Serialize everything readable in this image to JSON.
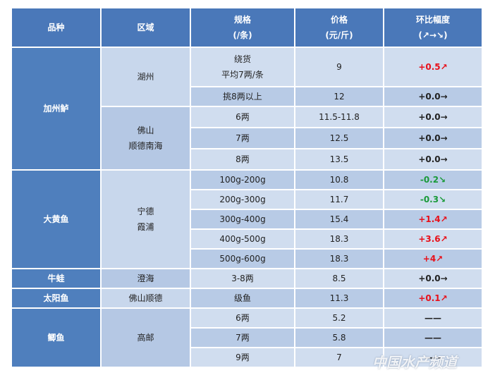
{
  "table": {
    "header": [
      "品种",
      "区域",
      [
        "规格",
        "(/条)"
      ],
      [
        "价格",
        "(元/斤)"
      ],
      [
        "环比幅度",
        "(↗→↘)"
      ]
    ],
    "groups": [
      {
        "variety": "加州鲈",
        "regions": [
          {
            "region": "湖州",
            "items": [
              {
                "spec": [
                  "绕货",
                  "平均7两/条"
                ],
                "price": "9",
                "change": "+0.5↗",
                "color": "#e8101a"
              },
              {
                "spec": "挑8两以上",
                "price": "12",
                "change": "+0.0→",
                "color": "#222222"
              }
            ]
          },
          {
            "region": [
              "佛山",
              "顺德南海"
            ],
            "items": [
              {
                "spec": "6两",
                "price": "11.5-11.8",
                "change": "+0.0→",
                "color": "#222222"
              },
              {
                "spec": "7两",
                "price": "12.5",
                "change": "+0.0→",
                "color": "#222222"
              },
              {
                "spec": "8两",
                "price": "13.5",
                "change": "+0.0→",
                "color": "#222222"
              }
            ]
          }
        ]
      },
      {
        "variety": "大黄鱼",
        "regions": [
          {
            "region": [
              "宁德",
              "霞浦"
            ],
            "items": [
              {
                "spec": "100g-200g",
                "price": "10.8",
                "change": "-0.2↘",
                "color": "#1a9a3a"
              },
              {
                "spec": "200g-300g",
                "price": "11.7",
                "change": "-0.3↘",
                "color": "#1a9a3a"
              },
              {
                "spec": "300g-400g",
                "price": "15.4",
                "change": "+1.4↗",
                "color": "#e8101a"
              },
              {
                "spec": "400g-500g",
                "price": "18.3",
                "change": "+3.6↗",
                "color": "#e8101a"
              },
              {
                "spec": "500g-600g",
                "price": "18.3",
                "change": "+4↗",
                "color": "#e8101a"
              }
            ]
          }
        ]
      },
      {
        "variety": "牛蛙",
        "regions": [
          {
            "region": "澄海",
            "items": [
              {
                "spec": "3-8两",
                "price": "8.5",
                "change": "+0.0→",
                "color": "#222222"
              }
            ]
          }
        ]
      },
      {
        "variety": "太阳鱼",
        "regions": [
          {
            "region": "佛山顺德",
            "items": [
              {
                "spec": "级鱼",
                "price": "11.3",
                "change": "+0.1↗",
                "color": "#e8101a"
              }
            ]
          }
        ]
      },
      {
        "variety": "鲫鱼",
        "regions": [
          {
            "region": "高邮",
            "items": [
              {
                "spec": "6两",
                "price": "5.2",
                "change": "——",
                "color": "#222222"
              },
              {
                "spec": "7两",
                "price": "5.8",
                "change": "——",
                "color": "#222222"
              },
              {
                "spec": "9两",
                "price": "7",
                "change": "——",
                "color": "#222222"
              }
            ]
          }
        ]
      }
    ]
  },
  "watermark": "中国水产频道"
}
